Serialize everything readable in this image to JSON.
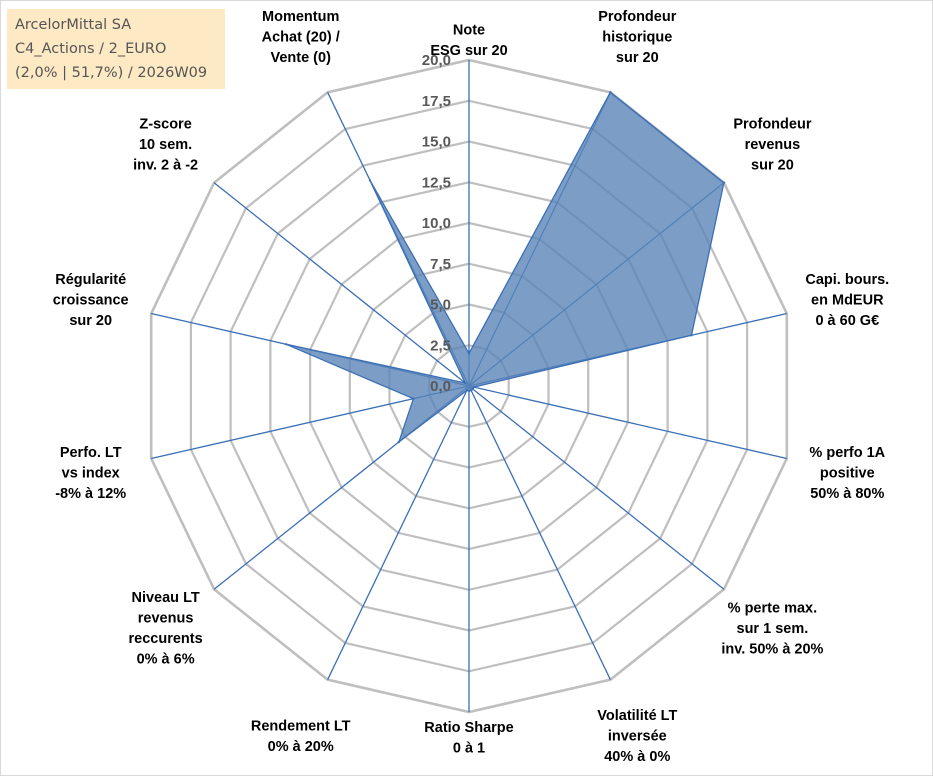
{
  "info": {
    "line1": "ArcelorMittal SA",
    "line2": "C4_Actions / 2_EURO",
    "line3": "(2,0% | 51,7%) / 2026W09"
  },
  "colors": {
    "fill": "#5b86b8",
    "stroke": "#3b6fb6",
    "grid": "#bfbfbf",
    "spoke": "#3b6fb6",
    "info_bg": "#fde9c4"
  },
  "chart_data": {
    "type": "radar",
    "title": "",
    "rmin": 0,
    "rmax": 20,
    "tick_step": 2.5,
    "tick_labels": [
      "0,0",
      "2,5",
      "5,0",
      "7,5",
      "10,0",
      "12,5",
      "15,0",
      "17,5",
      "20,0"
    ],
    "axes": [
      {
        "label": [
          "Note",
          "ESG sur 20"
        ],
        "value": 2.0
      },
      {
        "label": [
          "Profondeur",
          "historique",
          "sur 20"
        ],
        "value": 20.0
      },
      {
        "label": [
          "Profondeur",
          "revenus",
          "sur 20"
        ],
        "value": 20.0
      },
      {
        "label": [
          "Capi. bours.",
          "en MdEUR",
          "0 à 60 G€"
        ],
        "value": 14.0
      },
      {
        "label": [
          "% perfo 1A",
          "positive",
          "50% à 80%"
        ],
        "value": 0.3
      },
      {
        "label": [
          "% perte max.",
          "sur 1 sem.",
          "inv. 50% à 20%"
        ],
        "value": 0.3
      },
      {
        "label": [
          "Volatilité LT",
          "inversée",
          "40% à 0%"
        ],
        "value": 0.3
      },
      {
        "label": [
          "Ratio Sharpe",
          "0 à 1"
        ],
        "value": 0.3
      },
      {
        "label": [
          "Rendement LT",
          "0% à 20%"
        ],
        "value": 0.3
      },
      {
        "label": [
          "Niveau LT",
          "revenus",
          "reccurents",
          "0% à 6%"
        ],
        "value": 5.5
      },
      {
        "label": [
          "Perfo. LT",
          "vs index",
          "-8% à 12%"
        ],
        "value": 3.5
      },
      {
        "label": [
          "Régularité",
          "croissance",
          "sur 20"
        ],
        "value": 11.5
      },
      {
        "label": [
          "Z-score",
          "10 sem.",
          "inv. 2 à -2"
        ],
        "value": 0.3
      },
      {
        "label": [
          "Momentum",
          "Achat (20) /",
          "Vente (0)"
        ],
        "value": 14.0
      }
    ]
  }
}
